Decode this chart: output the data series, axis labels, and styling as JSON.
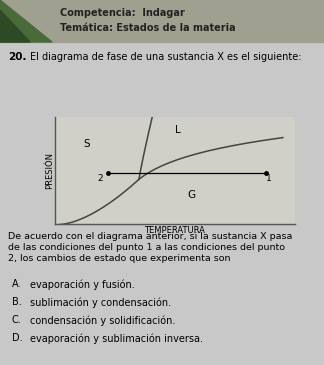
{
  "background_color": "#c8c8c8",
  "header_bg": "#8a8a7a",
  "header_text1": "Competencia:  Indagar",
  "header_text2": "Temática: Estados de la materia",
  "question_num": "20.",
  "question_text": "El diagrama de fase de una sustancia X es el siguiente:",
  "ylabel": "PRESIÓN",
  "xlabel": "TEMPERATURA",
  "label_S": "S",
  "label_L": "L",
  "label_G": "G",
  "point1_label": "1",
  "point2_label": "2",
  "body_lines": [
    "De acuerdo con el diagrama anterior, si la sustancia X pasa",
    "de las condiciones del punto 1 a las condiciones del punto",
    "2, los cambios de estado que experimenta son"
  ],
  "options": [
    [
      "A.",
      "evaporación y fusión."
    ],
    [
      "B.",
      "sublimación y condensación."
    ],
    [
      "C.",
      "condensación y solidificación."
    ],
    [
      "D.",
      "evaporación y sublimación inversa."
    ]
  ],
  "curve_color": "#444444",
  "header_tri_color": "#4a6a3a",
  "header_tri_dark": "#2d4a25",
  "text_color": "#333333"
}
